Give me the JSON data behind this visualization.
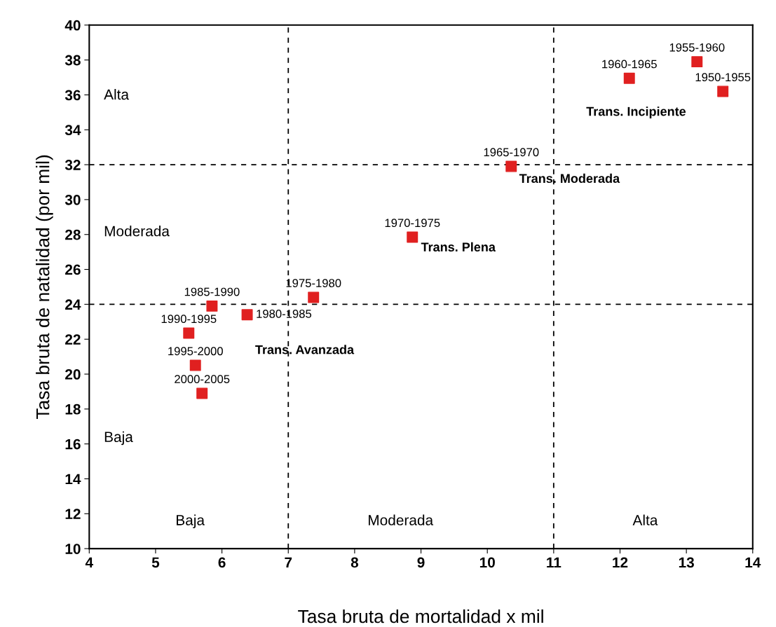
{
  "chart_data": {
    "type": "scatter",
    "xlabel": "Tasa bruta de mortalidad x mil",
    "ylabel": "Tasa bruta de natalidad (por mil)",
    "x": [
      13.55,
      13.16,
      12.14,
      10.36,
      8.87,
      7.38,
      6.38,
      5.85,
      5.5,
      5.6,
      5.7
    ],
    "series": [
      {
        "color": "#e02020",
        "values": [
          36.2,
          37.9,
          36.95,
          31.9,
          27.85,
          24.4,
          23.4,
          23.9,
          22.35,
          20.5,
          18.9
        ],
        "value_labels": [
          "1950-1955",
          "1955-1960",
          "1960-1965",
          "1965-1970",
          "1970-1975",
          "1975-1980",
          "1980-1985",
          "1985-1990",
          "1990-1995",
          "1995-2000",
          "2000-2005"
        ]
      }
    ],
    "marker": "square",
    "grid": false,
    "legend": false,
    "xlim": [
      4,
      14
    ],
    "xticks": [
      4,
      5,
      6,
      7,
      8,
      9,
      10,
      11,
      12,
      13,
      14
    ],
    "ylim": [
      10,
      40
    ],
    "yticks": [
      10,
      12,
      14,
      16,
      18,
      20,
      22,
      24,
      26,
      28,
      30,
      32,
      34,
      36,
      38,
      40
    ],
    "ref_lines": [
      {
        "axis": "x",
        "value": 7,
        "color": "#000000",
        "line_style": "dashed"
      },
      {
        "axis": "x",
        "value": 11,
        "color": "#000000",
        "line_style": "dashed"
      },
      {
        "axis": "y",
        "value": 24,
        "color": "#000000",
        "line_style": "dashed"
      },
      {
        "axis": "y",
        "value": 32,
        "color": "#000000",
        "line_style": "dashed"
      }
    ],
    "annotations": [
      "Trans. Incipiente",
      "Trans. Moderada",
      "Trans. Plena",
      "Trans. Avanzada",
      "Alta",
      "Moderada",
      "Baja",
      "Baja",
      "Moderada",
      "Alta"
    ]
  }
}
